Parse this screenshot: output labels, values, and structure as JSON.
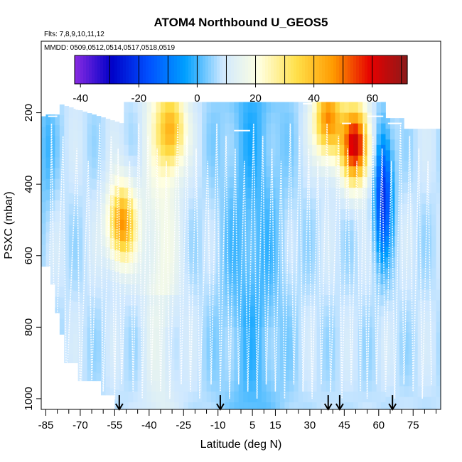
{
  "chart_data": {
    "type": "heatmap",
    "title": "ATOM4 Northbound U_GEOS5",
    "flights_label": "Flts: 7,8,9,10,11,12",
    "mmdd_label": "MMDD: 0509,0512,0514,0517,0518,0519",
    "xlabel": "Latitude (deg N)",
    "ylabel": "PSXC (mbar)",
    "xlim": [
      -87,
      87
    ],
    "ylim": [
      1030,
      0
    ],
    "x_ticks": [
      -85,
      -70,
      -55,
      -40,
      -25,
      -10,
      5,
      15,
      30,
      45,
      60,
      75
    ],
    "y_ticks": [
      200,
      400,
      600,
      800,
      1000
    ],
    "colorbar": {
      "range": [
        -42,
        72
      ],
      "ticks": [
        -40,
        -20,
        0,
        20,
        40,
        60
      ],
      "colors": [
        "#8a2be2",
        "#0000c8",
        "#0050ff",
        "#00a0ff",
        "#cfe8ff",
        "#ffffe0",
        "#ffe04a",
        "#ff9a00",
        "#e60000",
        "#8b1a1a"
      ]
    },
    "field_description_values": {
      "jet_maxima_u": [
        {
          "lat": -30,
          "p": 250,
          "u": 38
        },
        {
          "lat": -52,
          "p": 510,
          "u": 48
        },
        {
          "lat": 38,
          "p": 220,
          "u": 50
        },
        {
          "lat": 50,
          "p": 290,
          "u": 62
        }
      ],
      "easterly_minima_u": [
        {
          "lat": 62,
          "p": 420,
          "u": -22
        },
        {
          "lat": -85,
          "p": 300,
          "u": 0
        }
      ]
    },
    "arrow_latitudes": [
      -53,
      -9,
      38,
      43,
      66
    ],
    "series": [
      {
        "name": "flight track",
        "color": "#ffffff"
      }
    ]
  }
}
